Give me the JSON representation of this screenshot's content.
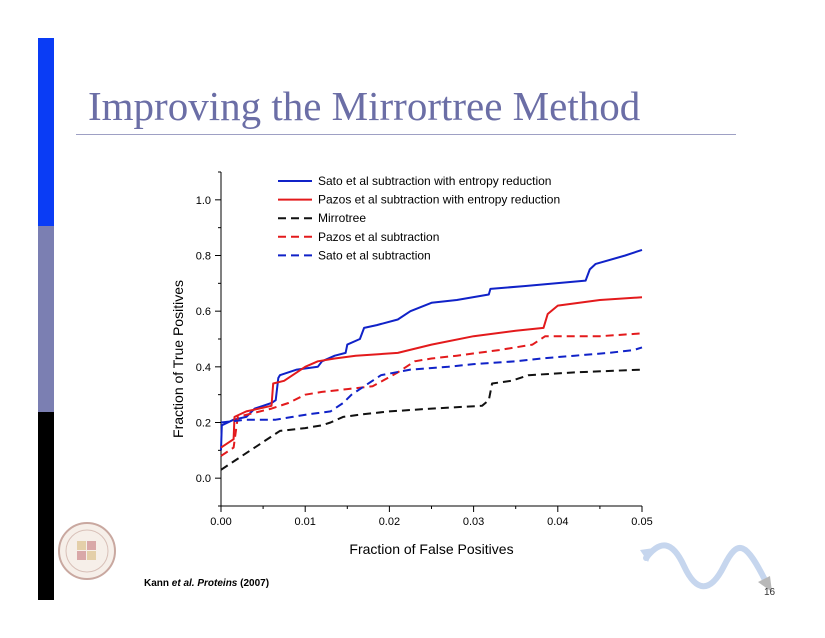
{
  "slide": {
    "title": "Improving the Mirrortree Method",
    "citation": {
      "authors": "Kann ",
      "et_al": "et al.",
      "journal": " Proteins",
      "year": " (2007)"
    },
    "page_number": "16",
    "colors": {
      "title": "#6b6ea6",
      "sidebar_top": "#0a3cf5",
      "sidebar_middle": "#7b7fb2",
      "sidebar_bottom": "#000000"
    },
    "logos": [
      "university-seal-icon",
      "sine-wave-arrow-icon"
    ]
  },
  "chart_data": {
    "type": "line",
    "title": "",
    "xlabel": "Fraction of False Positives",
    "ylabel": "Fraction of True Positives",
    "xlim": [
      0.0,
      0.05
    ],
    "ylim": [
      -0.1,
      1.1
    ],
    "x_ticks": [
      "0.00",
      "0.01",
      "0.02",
      "0.03",
      "0.04",
      "0.05"
    ],
    "y_ticks": [
      "0.0",
      "0.2",
      "0.4",
      "0.6",
      "0.8",
      "1.0"
    ],
    "grid": false,
    "legend_position": "top-left",
    "series": [
      {
        "name": "Sato et al subtraction with entropy reduction",
        "color": "#1022c8",
        "dash": "solid",
        "points": [
          [
            0,
            0.1
          ],
          [
            0.0001,
            0.19
          ],
          [
            0.0015,
            0.21
          ],
          [
            0.003,
            0.22
          ],
          [
            0.004,
            0.25
          ],
          [
            0.005,
            0.26
          ],
          [
            0.006,
            0.27
          ],
          [
            0.0065,
            0.28
          ],
          [
            0.0068,
            0.36
          ],
          [
            0.007,
            0.37
          ],
          [
            0.009,
            0.39
          ],
          [
            0.0115,
            0.4
          ],
          [
            0.012,
            0.42
          ],
          [
            0.0135,
            0.44
          ],
          [
            0.0148,
            0.45
          ],
          [
            0.015,
            0.48
          ],
          [
            0.0165,
            0.5
          ],
          [
            0.017,
            0.54
          ],
          [
            0.0185,
            0.55
          ],
          [
            0.021,
            0.57
          ],
          [
            0.0225,
            0.6
          ],
          [
            0.025,
            0.63
          ],
          [
            0.028,
            0.64
          ],
          [
            0.0318,
            0.66
          ],
          [
            0.032,
            0.68
          ],
          [
            0.036,
            0.69
          ],
          [
            0.0433,
            0.71
          ],
          [
            0.0438,
            0.75
          ],
          [
            0.0445,
            0.77
          ],
          [
            0.048,
            0.8
          ],
          [
            0.05,
            0.82
          ]
        ]
      },
      {
        "name": "Pazos et al subtraction with entropy reduction",
        "color": "#e31a1c",
        "dash": "solid",
        "points": [
          [
            0,
            0.11
          ],
          [
            0.0015,
            0.14
          ],
          [
            0.0016,
            0.22
          ],
          [
            0.003,
            0.24
          ],
          [
            0.006,
            0.26
          ],
          [
            0.0062,
            0.34
          ],
          [
            0.0075,
            0.35
          ],
          [
            0.01,
            0.4
          ],
          [
            0.0115,
            0.42
          ],
          [
            0.0135,
            0.43
          ],
          [
            0.016,
            0.44
          ],
          [
            0.021,
            0.45
          ],
          [
            0.025,
            0.48
          ],
          [
            0.03,
            0.51
          ],
          [
            0.035,
            0.53
          ],
          [
            0.0383,
            0.54
          ],
          [
            0.0388,
            0.59
          ],
          [
            0.04,
            0.62
          ],
          [
            0.045,
            0.64
          ],
          [
            0.05,
            0.65
          ]
        ]
      },
      {
        "name": "Mirrotree",
        "color": "#111111",
        "dash": "dashed",
        "points": [
          [
            0,
            0.03
          ],
          [
            0.003,
            0.09
          ],
          [
            0.007,
            0.17
          ],
          [
            0.01,
            0.18
          ],
          [
            0.012,
            0.19
          ],
          [
            0.013,
            0.2
          ],
          [
            0.0145,
            0.22
          ],
          [
            0.017,
            0.23
          ],
          [
            0.02,
            0.24
          ],
          [
            0.025,
            0.25
          ],
          [
            0.031,
            0.26
          ],
          [
            0.0318,
            0.28
          ],
          [
            0.0322,
            0.34
          ],
          [
            0.0345,
            0.35
          ],
          [
            0.0365,
            0.37
          ],
          [
            0.042,
            0.38
          ],
          [
            0.05,
            0.39
          ]
        ]
      },
      {
        "name": "Pazos et al subtraction",
        "color": "#e31a1c",
        "dash": "dashed",
        "points": [
          [
            0,
            0.08
          ],
          [
            0.0015,
            0.11
          ],
          [
            0.002,
            0.22
          ],
          [
            0.006,
            0.25
          ],
          [
            0.008,
            0.27
          ],
          [
            0.01,
            0.3
          ],
          [
            0.012,
            0.31
          ],
          [
            0.015,
            0.32
          ],
          [
            0.018,
            0.33
          ],
          [
            0.021,
            0.38
          ],
          [
            0.023,
            0.42
          ],
          [
            0.025,
            0.43
          ],
          [
            0.028,
            0.44
          ],
          [
            0.033,
            0.46
          ],
          [
            0.037,
            0.48
          ],
          [
            0.0385,
            0.51
          ],
          [
            0.045,
            0.51
          ],
          [
            0.05,
            0.52
          ]
        ]
      },
      {
        "name": "Sato et al subtraction",
        "color": "#1022c8",
        "dash": "dashed",
        "points": [
          [
            0,
            0.2
          ],
          [
            0.003,
            0.21
          ],
          [
            0.0065,
            0.21
          ],
          [
            0.0085,
            0.22
          ],
          [
            0.0105,
            0.23
          ],
          [
            0.013,
            0.24
          ],
          [
            0.0145,
            0.27
          ],
          [
            0.0155,
            0.3
          ],
          [
            0.017,
            0.33
          ],
          [
            0.019,
            0.37
          ],
          [
            0.0225,
            0.39
          ],
          [
            0.027,
            0.4
          ],
          [
            0.03,
            0.41
          ],
          [
            0.035,
            0.42
          ],
          [
            0.038,
            0.43
          ],
          [
            0.042,
            0.44
          ],
          [
            0.046,
            0.45
          ],
          [
            0.049,
            0.46
          ],
          [
            0.05,
            0.47
          ]
        ]
      }
    ]
  }
}
